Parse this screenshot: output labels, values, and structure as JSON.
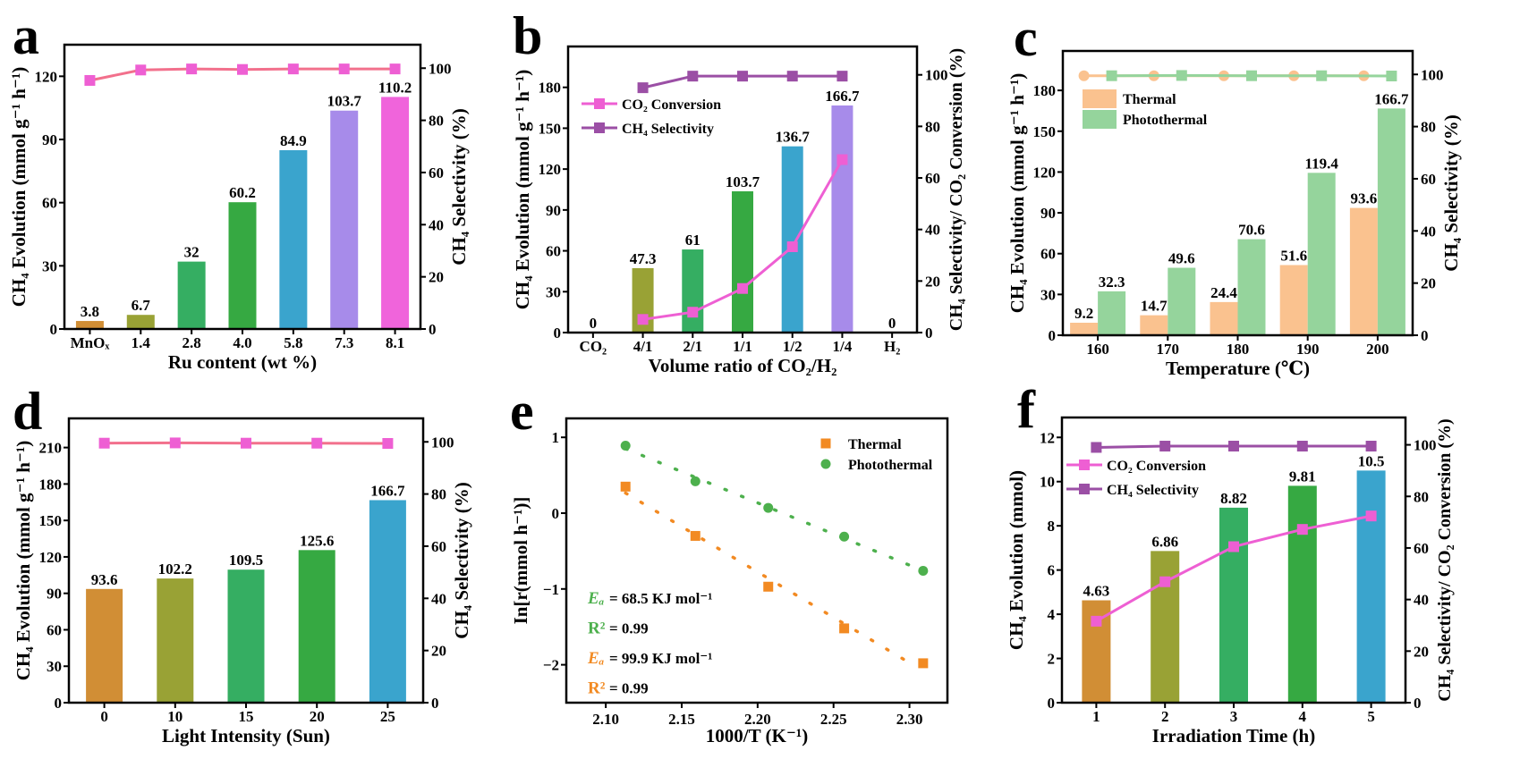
{
  "chart_data": [
    {
      "panel_label": "a",
      "type": "bar+line",
      "xlabel": "Ru content (wt %)",
      "ylabel": "CH₄ Evolution (mmol g⁻¹ h⁻¹)",
      "y2label": "CH₄ Selectivity (%)",
      "categories": [
        "MnOₓ",
        "1.4",
        "2.8",
        "4.0",
        "5.8",
        "7.3",
        "8.1"
      ],
      "ylim": [
        0,
        135
      ],
      "yticks": [
        "0",
        "30",
        "60",
        "90",
        "120"
      ],
      "y2lim": [
        0,
        109
      ],
      "y2ticks": [
        "0",
        "20",
        "40",
        "60",
        "80",
        "100"
      ],
      "bars": [
        {
          "values": [
            3.8,
            6.7,
            32,
            60.2,
            84.9,
            103.7,
            110.2
          ],
          "labels": [
            "3.8",
            "6.7",
            "32",
            "60.2",
            "84.9",
            "103.7",
            "110.2"
          ],
          "colors": [
            "#D18E35",
            "#99A235",
            "#35AE62",
            "#36A942",
            "#3AA4CD",
            "#A78BEA",
            "#F064DB"
          ]
        }
      ],
      "lines": [
        {
          "values": [
            95.3,
            99.3,
            99.7,
            99.5,
            99.7,
            99.7,
            99.7
          ],
          "axis": "right",
          "line_color": "#F2708C",
          "marker_color": "#EE5FD3",
          "marker": "square"
        }
      ],
      "grid": false
    },
    {
      "panel_label": "b",
      "type": "bar+line",
      "xlabel": "Volume ratio of CO₂/H₂",
      "ylabel": "CH₄ Evolution (mmol g⁻¹ h⁻¹)",
      "y2label": "CH₄ Selectivity/ CO₂ Conversion (%)",
      "categories": [
        "CO₂",
        "4/1",
        "2/1",
        "1/1",
        "1/2",
        "1/4",
        "H₂"
      ],
      "ylim": [
        0,
        210
      ],
      "yticks": [
        "0",
        "30",
        "60",
        "90",
        "120",
        "150",
        "180"
      ],
      "y2lim": [
        0,
        111
      ],
      "y2ticks": [
        "0",
        "20",
        "40",
        "60",
        "80",
        "100"
      ],
      "bars": [
        {
          "values": [
            0,
            47.3,
            61,
            103.7,
            136.7,
            166.7,
            0
          ],
          "labels": [
            "0",
            "47.3",
            "61",
            "103.7",
            "136.7",
            "166.7",
            "0"
          ],
          "colors": [
            "#000000",
            "#99A235",
            "#35AE62",
            "#36A942",
            "#3AA4CD",
            "#A78BEA",
            "#000000"
          ]
        }
      ],
      "lines": [
        {
          "name": "CO₂ Conversion",
          "values": [
            null,
            5.1,
            7.9,
            17.1,
            33.3,
            67.1,
            null
          ],
          "axis": "right",
          "line_color": "#EE5FD3",
          "marker_color": "#EE5FD3",
          "marker": "square"
        },
        {
          "name": "CH₄ Selectivity",
          "values": [
            null,
            95,
            99.5,
            99.5,
            99.5,
            99.5,
            null
          ],
          "axis": "right",
          "line_color": "#9B4FA5",
          "marker_color": "#9B4FA5",
          "marker": "square"
        }
      ],
      "legend": "upper-left",
      "grid": false
    },
    {
      "panel_label": "c",
      "type": "bar+line",
      "xlabel": "Temperature (℃)",
      "ylabel": "CH₄ Evolution (mmol g⁻¹ h⁻¹)",
      "y2label": "CH₄ Selectivity (%)",
      "categories": [
        "160",
        "170",
        "180",
        "190",
        "200"
      ],
      "ylim": [
        0,
        209
      ],
      "yticks": [
        "0",
        "30",
        "60",
        "90",
        "120",
        "150",
        "180"
      ],
      "y2lim": [
        0,
        109
      ],
      "y2ticks": [
        "0",
        "20",
        "40",
        "60",
        "80",
        "100"
      ],
      "bars": [
        {
          "name": "Thermal",
          "values": [
            9.2,
            14.7,
            24.4,
            51.6,
            93.6
          ],
          "labels": [
            "9.2",
            "14.7",
            "24.4",
            "51.6",
            "93.6"
          ],
          "colors": [
            "#FAC28F",
            "#FAC28F",
            "#FAC28F",
            "#FAC28F",
            "#FAC28F"
          ]
        },
        {
          "name": "Photothermal",
          "values": [
            32.3,
            49.6,
            70.6,
            119.4,
            166.7
          ],
          "labels": [
            "32.3",
            "49.6",
            "70.6",
            "119.4",
            "166.7"
          ],
          "colors": [
            "#95D49C",
            "#95D49C",
            "#95D49C",
            "#95D49C",
            "#95D49C"
          ]
        }
      ],
      "lines": [
        {
          "values": [
            99.5,
            99.5,
            99.5,
            99.5,
            99.5
          ],
          "axis": "right",
          "line_color": "#FAC28F",
          "marker_color": "#FAC28F",
          "marker": "circle",
          "bar_index": 0
        },
        {
          "values": [
            99.5,
            99.6,
            99.5,
            99.5,
            99.4
          ],
          "axis": "right",
          "line_color": "#95D49C",
          "marker_color": "#95D49C",
          "marker": "square",
          "bar_index": 1
        }
      ],
      "legend": "upper-left",
      "grid": false
    },
    {
      "panel_label": "d",
      "type": "bar+line",
      "xlabel": "Light Intensity (Sun)",
      "ylabel": "CH₄ Evolution (mmol g⁻¹ h⁻¹)",
      "y2label": "CH₄ Selectivity (%)",
      "categories": [
        "0",
        "10",
        "15",
        "20",
        "25"
      ],
      "ylim": [
        0,
        234
      ],
      "yticks": [
        "0",
        "30",
        "60",
        "90",
        "120",
        "150",
        "180",
        "210"
      ],
      "y2lim": [
        0,
        109
      ],
      "y2ticks": [
        "0",
        "20",
        "40",
        "60",
        "80",
        "100"
      ],
      "bars": [
        {
          "values": [
            93.6,
            102.2,
            109.5,
            125.6,
            166.7
          ],
          "labels": [
            "93.6",
            "102.2",
            "109.5",
            "125.6",
            "166.7"
          ],
          "colors": [
            "#D18E35",
            "#99A235",
            "#35AE62",
            "#36A942",
            "#3AA4CD"
          ]
        }
      ],
      "lines": [
        {
          "values": [
            99.5,
            99.6,
            99.5,
            99.5,
            99.4
          ],
          "axis": "right",
          "line_color": "#F2708C",
          "marker_color": "#EE5FD3",
          "marker": "square"
        }
      ],
      "grid": false
    },
    {
      "panel_label": "e",
      "type": "scatter",
      "xlabel": "1000/T (K⁻¹)",
      "ylabel": "In[r(mmol h⁻¹)]",
      "xlim": [
        2.074,
        2.325
      ],
      "ylim": [
        -2.5,
        1.25
      ],
      "xticks": [
        "2.10",
        "2.15",
        "2.20",
        "2.25",
        "2.30"
      ],
      "yticks": [
        "−2",
        "−1",
        "0",
        "1"
      ],
      "series": [
        {
          "name": "Thermal",
          "x": [
            2.113,
            2.159,
            2.207,
            2.257,
            2.309
          ],
          "y": [
            0.35,
            -0.3,
            -0.97,
            -1.52,
            -1.98
          ],
          "color": "#F28A22",
          "marker": "square",
          "fit": "dotted"
        },
        {
          "name": "Photothermal",
          "x": [
            2.113,
            2.159,
            2.207,
            2.257,
            2.309
          ],
          "y": [
            0.89,
            0.42,
            0.07,
            -0.31,
            -0.76
          ],
          "color": "#4DB04D",
          "marker": "circle",
          "fit": "dotted"
        }
      ],
      "annotations": [
        {
          "symbol": "Eₐ",
          "text": " = 68.5 KJ mol⁻¹",
          "color": "#4DB04D"
        },
        {
          "symbol": "R²",
          "text": " = 0.99",
          "color": "#4DB04D"
        },
        {
          "symbol": "Eₐ",
          "text": " = 99.9 KJ mol⁻¹",
          "color": "#F28A22"
        },
        {
          "symbol": "R²",
          "text": " = 0.99",
          "color": "#F28A22"
        }
      ],
      "legend": "upper-right",
      "grid": false
    },
    {
      "panel_label": "f",
      "type": "bar+line",
      "xlabel": "Irradiation Time (h)",
      "ylabel": "CH₄ Evolution (mmol)",
      "y2label": "CH₄ Selectivity/ CO₂ Conversion (%)",
      "categories": [
        "1",
        "2",
        "3",
        "4",
        "5"
      ],
      "ylim": [
        0,
        12.9
      ],
      "yticks": [
        "0",
        "2",
        "4",
        "6",
        "8",
        "10",
        "12"
      ],
      "y2lim": [
        0,
        110.6
      ],
      "y2ticks": [
        "0",
        "20",
        "40",
        "60",
        "80",
        "100"
      ],
      "bars": [
        {
          "values": [
            4.63,
            6.86,
            8.82,
            9.81,
            10.5
          ],
          "labels": [
            "4.63",
            "6.86",
            "8.82",
            "9.81",
            "10.5"
          ],
          "colors": [
            "#D18E35",
            "#99A235",
            "#35AE62",
            "#36A942",
            "#3AA4CD"
          ]
        }
      ],
      "lines": [
        {
          "name": "CO₂ Conversion",
          "values": [
            31.6,
            46.9,
            60.5,
            67.2,
            72.4
          ],
          "axis": "right",
          "line_color": "#EE5FD3",
          "marker_color": "#EE5FD3",
          "marker": "square"
        },
        {
          "name": "CH₄ Selectivity",
          "values": [
            99,
            99.5,
            99.5,
            99.5,
            99.5
          ],
          "axis": "right",
          "line_color": "#9B4FA5",
          "marker_color": "#9B4FA5",
          "marker": "square"
        }
      ],
      "legend": "upper-left",
      "grid": false
    }
  ]
}
